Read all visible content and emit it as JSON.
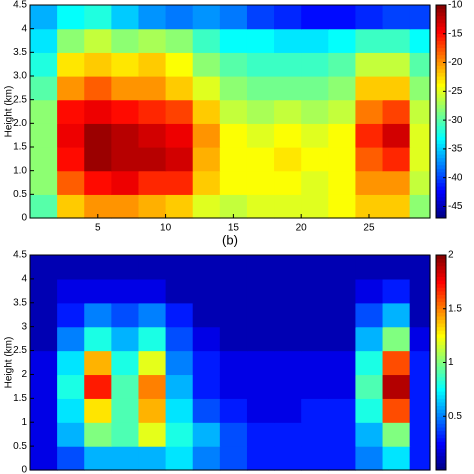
{
  "chart_data": [
    {
      "type": "contour",
      "colormap": "jet",
      "ylabel": "Height (km)",
      "x": [
        1,
        3,
        5,
        7,
        9,
        11,
        13,
        15,
        17,
        19,
        21,
        23,
        25,
        27,
        29
      ],
      "y": [
        0.25,
        0.75,
        1.25,
        1.75,
        2.25,
        2.75,
        3.25,
        3.75,
        4.25
      ],
      "z": [
        [
          -30,
          -22,
          -20,
          -20,
          -21,
          -22,
          -25,
          -26,
          -25,
          -25,
          -25,
          -24,
          -22,
          -22,
          -28
        ],
        [
          -28,
          -18,
          -15,
          -14,
          -16,
          -16,
          -22,
          -24,
          -24,
          -24,
          -25,
          -24,
          -20,
          -20,
          -26
        ],
        [
          -28,
          -15,
          -11,
          -12,
          -12,
          -13,
          -21,
          -24,
          -24,
          -23,
          -24,
          -24,
          -18,
          -16,
          -25
        ],
        [
          -28,
          -14,
          -11,
          -12,
          -13,
          -14,
          -20,
          -24,
          -25,
          -24,
          -25,
          -24,
          -16,
          -13,
          -25
        ],
        [
          -28,
          -15,
          -14,
          -15,
          -16,
          -17,
          -22,
          -26,
          -27,
          -26,
          -27,
          -26,
          -19,
          -17,
          -26
        ],
        [
          -30,
          -20,
          -18,
          -20,
          -20,
          -22,
          -25,
          -28,
          -29,
          -29,
          -29,
          -28,
          -22,
          -22,
          -28
        ],
        [
          -32,
          -23,
          -22,
          -23,
          -22,
          -24,
          -28,
          -30,
          -31,
          -31,
          -31,
          -30,
          -26,
          -26,
          -30
        ],
        [
          -34,
          -28,
          -26,
          -28,
          -27,
          -28,
          -31,
          -33,
          -33,
          -34,
          -34,
          -33,
          -31,
          -31,
          -33
        ],
        [
          -36,
          -33,
          -32,
          -35,
          -37,
          -38,
          -37,
          -38,
          -40,
          -41,
          -42,
          -42,
          -41,
          -40,
          -40
        ]
      ],
      "xlim": [
        0,
        29.5
      ],
      "ylim": [
        0,
        4.5
      ],
      "xticks": [
        5,
        10,
        15,
        20,
        25
      ],
      "yticks": [
        0,
        0.5,
        {
          "value": 1,
          "label": "1.0"
        },
        1.5,
        {
          "value": 2,
          "label": "2.0"
        },
        2.5,
        {
          "value": 3,
          "label": "3.0"
        },
        3.5,
        4,
        4.5
      ],
      "clim": [
        -47,
        -10
      ],
      "cticks": [
        -45,
        -40,
        -35,
        -30,
        -25,
        -20,
        -15,
        -10
      ]
    },
    {
      "type": "contour",
      "colormap": "jet",
      "title": "(b)",
      "ylabel": "Height (km)",
      "x": [
        1,
        3,
        5,
        7,
        9,
        11,
        13,
        15,
        17,
        19,
        21,
        23,
        25,
        27,
        29
      ],
      "y": [
        0.25,
        0.75,
        1.25,
        1.75,
        2.25,
        2.75,
        3.25,
        3.75,
        4.25
      ],
      "z": [
        [
          0.2,
          0.4,
          0.6,
          0.6,
          0.6,
          0.7,
          0.5,
          0.4,
          0.3,
          0.3,
          0.3,
          0.3,
          0.5,
          0.7,
          0.3
        ],
        [
          0.2,
          0.6,
          1.0,
          0.9,
          1.2,
          0.8,
          0.6,
          0.4,
          0.3,
          0.3,
          0.3,
          0.3,
          0.6,
          1.0,
          0.3
        ],
        [
          0.2,
          0.7,
          1.3,
          0.9,
          1.4,
          0.7,
          0.4,
          0.3,
          0.2,
          0.2,
          0.3,
          0.3,
          0.8,
          1.6,
          0.3
        ],
        [
          0.2,
          0.8,
          1.7,
          0.9,
          1.5,
          0.6,
          0.3,
          0.2,
          0.2,
          0.2,
          0.2,
          0.2,
          0.9,
          1.9,
          0.3
        ],
        [
          0.2,
          0.7,
          1.4,
          0.8,
          1.2,
          0.5,
          0.3,
          0.2,
          0.2,
          0.2,
          0.2,
          0.2,
          0.8,
          1.6,
          0.3
        ],
        [
          0.1,
          0.5,
          0.8,
          0.6,
          0.8,
          0.4,
          0.2,
          0.1,
          0.1,
          0.1,
          0.1,
          0.1,
          0.6,
          1.0,
          0.2
        ],
        [
          0.1,
          0.3,
          0.5,
          0.4,
          0.5,
          0.3,
          0.1,
          0.1,
          0.1,
          0.1,
          0.1,
          0.1,
          0.4,
          0.6,
          0.1
        ],
        [
          0.1,
          0.2,
          0.2,
          0.2,
          0.2,
          0.1,
          0.1,
          0.1,
          0.1,
          0.1,
          0.1,
          0.1,
          0.2,
          0.3,
          0.1
        ],
        [
          0.1,
          0.1,
          0.1,
          0.1,
          0.1,
          0.1,
          0.1,
          0.1,
          0.1,
          0.1,
          0.1,
          0.1,
          0.1,
          0.1,
          0.1
        ]
      ],
      "xlim": [
        0,
        29.5
      ],
      "ylim": [
        0,
        4.5
      ],
      "yticks": [
        0,
        0.5,
        1,
        1.5,
        2,
        2.5,
        3,
        3.5,
        4,
        4.5
      ],
      "clim": [
        0,
        2
      ],
      "cticks": [
        0.5,
        1,
        1.5,
        2
      ]
    }
  ]
}
